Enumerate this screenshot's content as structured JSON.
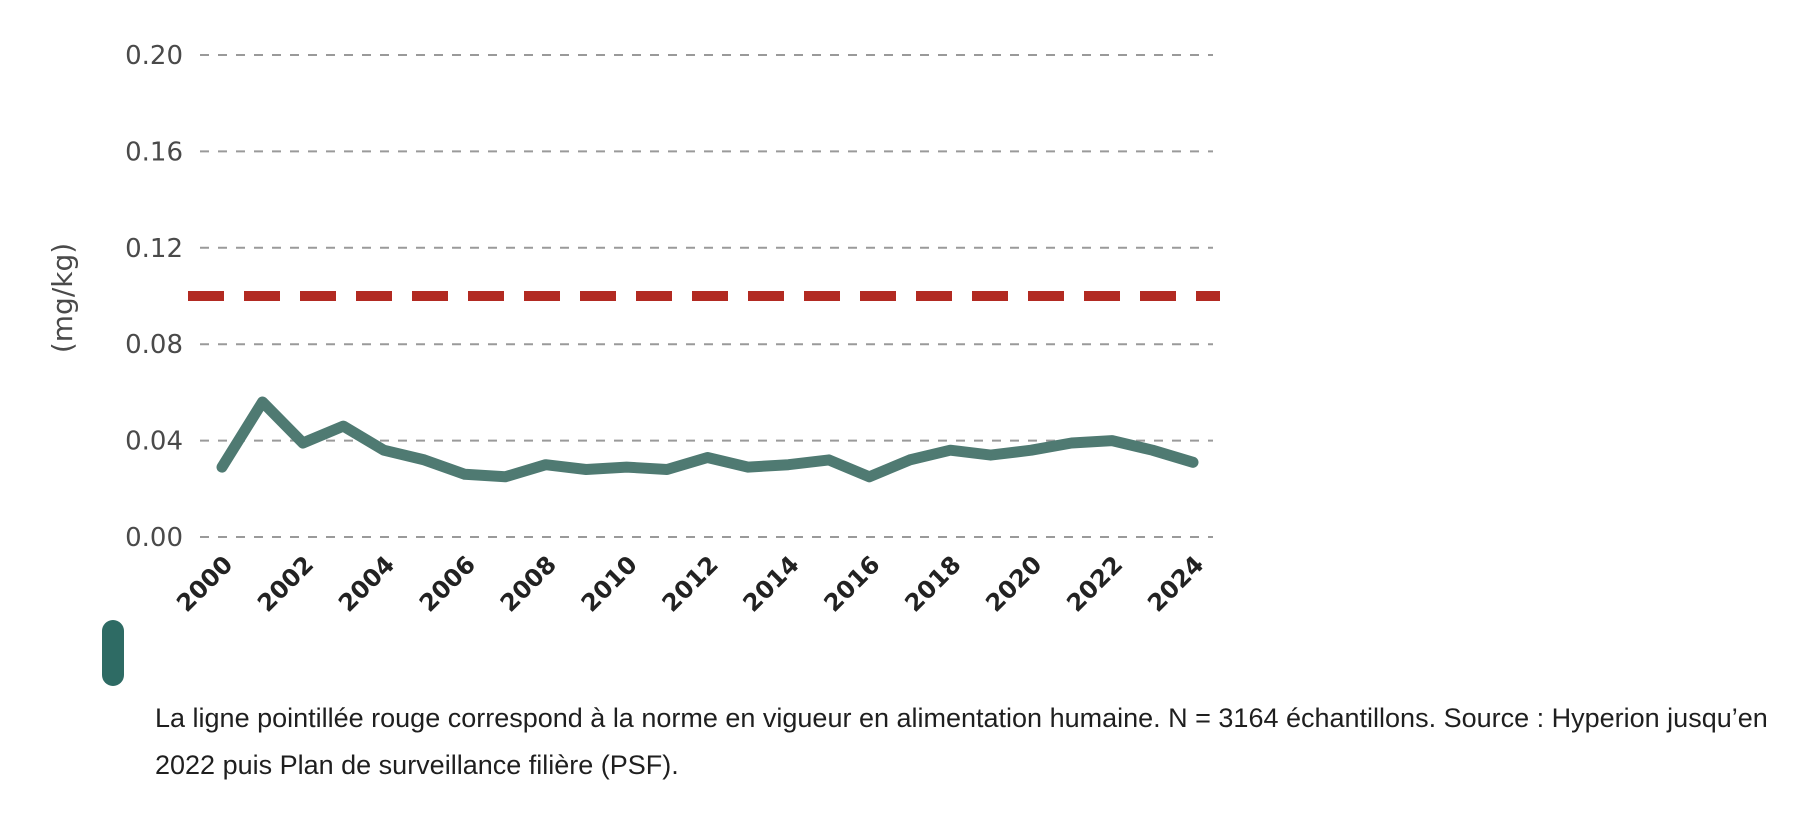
{
  "chart_data": {
    "type": "line",
    "title": "",
    "xlabel": "",
    "ylabel": "(mg/kg)",
    "ylim": [
      0,
      0.2
    ],
    "y_ticks": [
      "0.00",
      "0.04",
      "0.08",
      "0.12",
      "0.16",
      "0.20"
    ],
    "y_tick_values": [
      0,
      0.04,
      0.08,
      0.12,
      0.16,
      0.2
    ],
    "x_tick_labels": [
      "2000",
      "2002",
      "2004",
      "2006",
      "2008",
      "2010",
      "2012",
      "2014",
      "2016",
      "2018",
      "2020",
      "2022",
      "2024"
    ],
    "grid": "horizontal dashed",
    "series": [
      {
        "color": "#4f7a72",
        "x": [
          2000,
          2001,
          2002,
          2003,
          2004,
          2005,
          2006,
          2007,
          2008,
          2009,
          2010,
          2011,
          2012,
          2013,
          2014,
          2015,
          2016,
          2017,
          2018,
          2019,
          2020,
          2021,
          2022,
          2023,
          2024
        ],
        "values": [
          0.029,
          0.056,
          0.039,
          0.046,
          0.036,
          0.032,
          0.026,
          0.025,
          0.03,
          0.028,
          0.029,
          0.028,
          0.033,
          0.029,
          0.03,
          0.032,
          0.025,
          0.032,
          0.036,
          0.034,
          0.036,
          0.039,
          0.04,
          0.036,
          0.031
        ]
      }
    ],
    "reference_line": {
      "value": 0.1,
      "color": "#b22a22",
      "style": "dashed"
    }
  },
  "caption": {
    "text": "La ligne pointillée rouge correspond à la norme en vigueur en alimentation humaine. N = 3164 échantillons. Source : Hyperion jusqu’en 2022 puis Plan de surveillance filière (PSF).",
    "marker_color": "#2e6b64"
  }
}
